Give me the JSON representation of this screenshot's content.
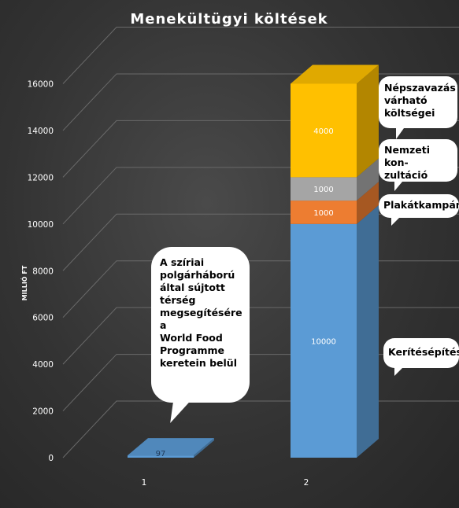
{
  "chart_data": {
    "type": "bar",
    "stacked": true,
    "three_d": true,
    "title": "Menekültügyi költések",
    "ylabel": "MILLIÓ FT",
    "xlabel": "",
    "categories": [
      "1",
      "2"
    ],
    "ylim": [
      0,
      16000
    ],
    "yticks": [
      0,
      2000,
      4000,
      6000,
      8000,
      10000,
      12000,
      14000,
      16000
    ],
    "ytick_labels": [
      "0",
      "2000",
      "4000",
      "6000",
      "8000",
      "10000",
      "12000",
      "14000",
      "16000"
    ],
    "grid": true,
    "legend": "none",
    "series": [
      {
        "values": [
          97,
          10000
        ],
        "labels": [
          "97",
          "10000"
        ],
        "color": "#5b9bd5"
      },
      {
        "values": [
          0,
          1000
        ],
        "labels": [
          "",
          "1000"
        ],
        "color": "#ed7d31"
      },
      {
        "values": [
          0,
          1000
        ],
        "labels": [
          "",
          "1000"
        ],
        "color": "#a5a5a5"
      },
      {
        "values": [
          0,
          4000
        ],
        "labels": [
          "",
          "4000"
        ],
        "color": "#ffc000"
      }
    ],
    "annotations": [
      {
        "name": "syria",
        "text_lines": [
          "A szíriai",
          "polgárháború",
          "által sújtott",
          "térség",
          "megsegítésére a",
          "World Food",
          "Programme",
          "keretein belül"
        ]
      },
      {
        "name": "nepszava",
        "text_lines": [
          "Népszavazás",
          "várható",
          "költségei"
        ]
      },
      {
        "name": "nemzeti",
        "text_lines": [
          "Nemzeti kon-",
          "zultáció"
        ]
      },
      {
        "name": "plakat",
        "text_lines": [
          "Plakátkampány"
        ]
      },
      {
        "name": "kerites",
        "text_lines": [
          "Kerítésépítés"
        ]
      }
    ]
  }
}
